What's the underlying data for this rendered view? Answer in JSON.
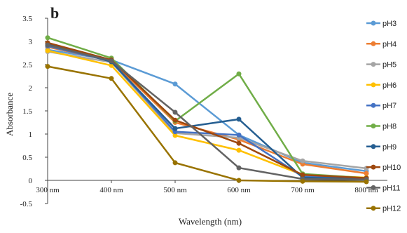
{
  "chart_data": {
    "type": "line",
    "panel_label": "b",
    "title": "",
    "xlabel": "Wavelength (nm)",
    "ylabel": "Absorbance",
    "categories": [
      "300 nm",
      "400 nm",
      "500 nm",
      "600 nm",
      "700 nm",
      "800 nm"
    ],
    "ylim": [
      -0.5,
      3.5
    ],
    "yticks": [
      "-0.5",
      "0",
      "0.5",
      "1",
      "1.5",
      "2",
      "2.5",
      "3",
      "3.5"
    ],
    "ytick_values": [
      -0.5,
      0,
      0.5,
      1,
      1.5,
      2,
      2.5,
      3,
      3.5
    ],
    "grid": false,
    "legend_position": "right",
    "series": [
      {
        "name": "pH3",
        "color": "#5b9bd5",
        "values": [
          2.82,
          2.6,
          2.08,
          0.98,
          0.38,
          0.2
        ]
      },
      {
        "name": "pH4",
        "color": "#ed7d31",
        "values": [
          2.88,
          2.58,
          1.25,
          0.88,
          0.35,
          0.15
        ]
      },
      {
        "name": "pH5",
        "color": "#a5a5a5",
        "values": [
          2.78,
          2.55,
          1.02,
          0.92,
          0.42,
          0.26
        ]
      },
      {
        "name": "pH6",
        "color": "#ffc000",
        "values": [
          2.8,
          2.48,
          0.97,
          0.65,
          0.12,
          0.06
        ]
      },
      {
        "name": "pH7",
        "color": "#4472c4",
        "values": [
          2.9,
          2.57,
          1.05,
          0.98,
          0.08,
          0.04
        ]
      },
      {
        "name": "pH8",
        "color": "#70ad47",
        "values": [
          3.08,
          2.64,
          1.28,
          2.3,
          0.14,
          0.05
        ]
      },
      {
        "name": "pH9",
        "color": "#255e91",
        "values": [
          2.95,
          2.56,
          1.12,
          1.32,
          0.06,
          0.03
        ]
      },
      {
        "name": "pH10",
        "color": "#9e480e",
        "values": [
          2.97,
          2.6,
          1.3,
          0.8,
          0.12,
          0.05
        ]
      },
      {
        "name": "pH11",
        "color": "#636363",
        "values": [
          2.92,
          2.58,
          1.47,
          0.27,
          0.03,
          0.02
        ]
      },
      {
        "name": "pH12",
        "color": "#997300",
        "values": [
          2.46,
          2.2,
          0.38,
          0.0,
          -0.02,
          -0.03
        ]
      }
    ]
  }
}
